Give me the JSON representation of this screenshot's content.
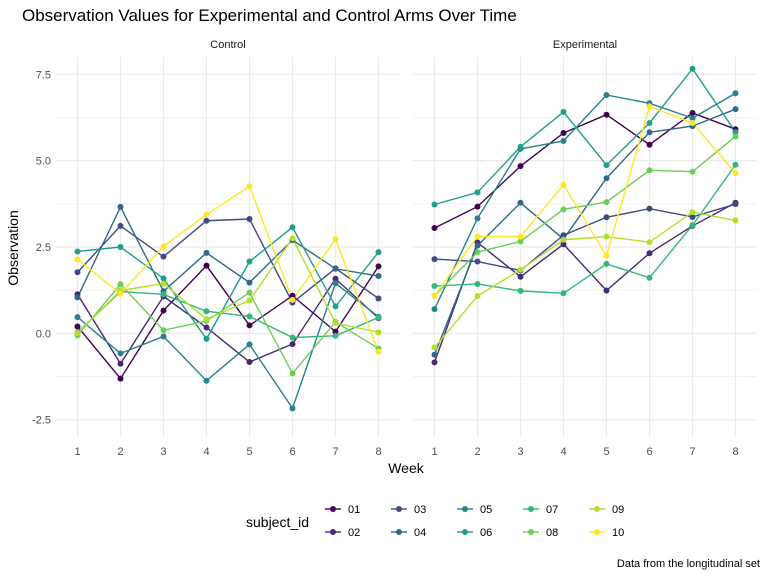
{
  "chart_data": {
    "type": "line",
    "title": "Observation Values for Experimental and Control Arms Over Time",
    "xlabel": "Week",
    "ylabel": "Observation",
    "caption": "Data from the longitudinal set",
    "legend_title": "subject_id",
    "legend_position": "bottom",
    "x": [
      1,
      2,
      3,
      4,
      5,
      6,
      7,
      8
    ],
    "x_ticks": [
      "1",
      "2",
      "3",
      "4",
      "5",
      "6",
      "7",
      "8"
    ],
    "y_ticks": [
      "-2.5",
      "0.0",
      "2.5",
      "5.0",
      "7.5"
    ],
    "ylim": [
      -3.0,
      8.0
    ],
    "grid": true,
    "colors": {
      "01": "#440154",
      "02": "#482878",
      "03": "#3E4A89",
      "04": "#31688E",
      "05": "#26828E",
      "06": "#1F9E89",
      "07": "#35B779",
      "08": "#6DCD59",
      "09": "#B4DE2C",
      "10": "#FDE725"
    },
    "panels": [
      {
        "name": "Control",
        "series": [
          {
            "name": "01",
            "values": [
              0.2,
              -1.31,
              0.66,
              1.96,
              0.23,
              1.09,
              0.05,
              1.94
            ]
          },
          {
            "name": "02",
            "values": [
              1.13,
              -0.88,
              1.07,
              0.17,
              -0.83,
              -0.31,
              1.58,
              0.44
            ]
          },
          {
            "name": "03",
            "values": [
              1.77,
              3.11,
              2.22,
              3.26,
              3.31,
              0.89,
              1.88,
              1.01
            ]
          },
          {
            "name": "04",
            "values": [
              1.04,
              3.66,
              1.22,
              2.33,
              1.47,
              2.7,
              1.87,
              1.66
            ]
          },
          {
            "name": "05",
            "values": [
              0.47,
              -0.58,
              -0.09,
              -1.37,
              -0.32,
              -2.17,
              1.45,
              0.48
            ]
          },
          {
            "name": "06",
            "values": [
              2.37,
              2.5,
              1.59,
              -0.16,
              2.08,
              3.07,
              0.78,
              2.35
            ]
          },
          {
            "name": "07",
            "values": [
              0.03,
              1.21,
              1.13,
              0.64,
              0.49,
              -0.12,
              -0.07,
              0.46
            ]
          },
          {
            "name": "08",
            "values": [
              -0.06,
              1.42,
              0.09,
              0.36,
              1.18,
              -1.16,
              0.33,
              -0.44
            ]
          },
          {
            "name": "09",
            "values": [
              0.01,
              1.24,
              1.44,
              0.41,
              0.95,
              2.75,
              0.3,
              0.03
            ]
          },
          {
            "name": "10",
            "values": [
              2.14,
              1.15,
              2.52,
              3.44,
              4.26,
              0.97,
              2.73,
              -0.53
            ]
          }
        ]
      },
      {
        "name": "Experimental",
        "series": [
          {
            "name": "01",
            "values": [
              3.05,
              3.67,
              4.84,
              5.8,
              6.33,
              5.46,
              6.38,
              5.91
            ]
          },
          {
            "name": "02",
            "values": [
              -0.84,
              2.63,
              1.64,
              2.58,
              1.24,
              2.32,
              3.11,
              3.78
            ]
          },
          {
            "name": "03",
            "values": [
              2.15,
              2.08,
              1.82,
              2.84,
              3.36,
              3.61,
              3.37,
              3.74
            ]
          },
          {
            "name": "04",
            "values": [
              -0.62,
              2.54,
              3.78,
              2.73,
              4.49,
              5.82,
              6.0,
              6.49
            ]
          },
          {
            "name": "05",
            "values": [
              0.7,
              3.33,
              5.34,
              5.57,
              6.9,
              6.66,
              6.23,
              6.95
            ]
          },
          {
            "name": "06",
            "values": [
              3.73,
              4.08,
              5.4,
              6.41,
              4.87,
              6.09,
              7.66,
              5.83
            ]
          },
          {
            "name": "07",
            "values": [
              1.37,
              1.43,
              1.23,
              1.16,
              2.01,
              1.61,
              3.13,
              4.88
            ]
          },
          {
            "name": "08",
            "values": [
              1.09,
              2.35,
              2.66,
              3.59,
              3.8,
              4.72,
              4.68,
              5.7
            ]
          },
          {
            "name": "09",
            "values": [
              -0.41,
              1.08,
              1.84,
              2.71,
              2.8,
              2.64,
              3.51,
              3.27
            ]
          },
          {
            "name": "10",
            "values": [
              1.09,
              2.8,
              2.8,
              4.3,
              2.25,
              6.57,
              6.09,
              4.64
            ]
          }
        ]
      }
    ],
    "legend_rows": [
      [
        "01",
        "03",
        "05",
        "07",
        "09"
      ],
      [
        "02",
        "04",
        "06",
        "08",
        "10"
      ]
    ]
  }
}
